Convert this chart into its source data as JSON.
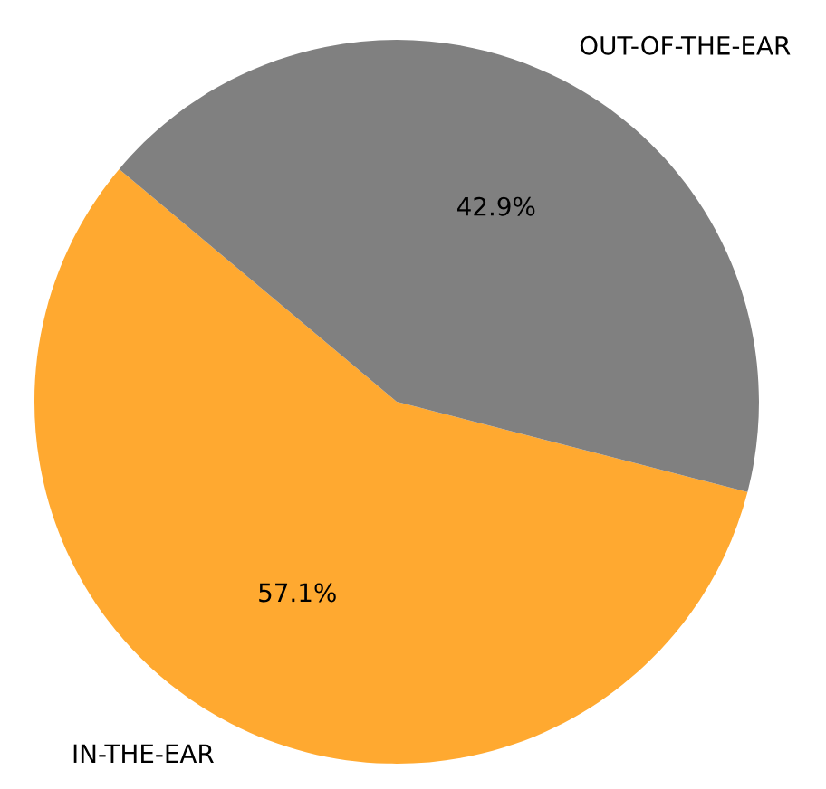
{
  "chart_data": {
    "type": "pie",
    "categories": [
      "IN-THE-EAR",
      "OUT-OF-THE-EAR"
    ],
    "values": [
      57.1,
      42.9
    ],
    "colors": [
      "#ffa930",
      "#808080"
    ],
    "value_labels": [
      "57.1%",
      "42.9%"
    ]
  }
}
